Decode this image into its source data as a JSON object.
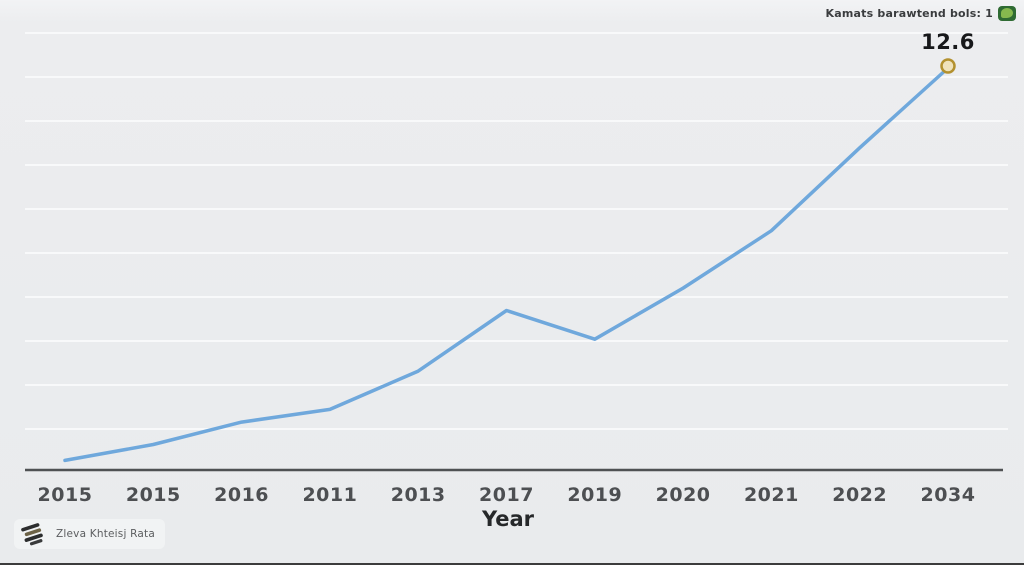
{
  "header": {
    "legend_text": "Kamats barawtend bols: 1",
    "legend_badge_icon": "green-leaf-badge"
  },
  "annotation": {
    "end_value_label": "12.6"
  },
  "axis": {
    "x_title": "Year"
  },
  "watermark": {
    "text": "Zleva Khteisj Rata",
    "icon": "stacked-bars-logo"
  },
  "colors": {
    "background": "#e9ebed",
    "gridline": "#f8f9fa",
    "axis_line": "#4f5153",
    "line": "#6fa8dc",
    "marker_stroke": "#b3912f",
    "marker_fill": "#efe2bb",
    "badge_green": "#2f6b33",
    "badge_leaf": "#86b94e"
  },
  "chart_data": {
    "type": "line",
    "title": "",
    "xlabel": "Year",
    "ylabel": "",
    "categories": [
      "2015",
      "2015",
      "2016",
      "2011",
      "2013",
      "2017",
      "2019",
      "2020",
      "2021",
      "2022",
      "2034"
    ],
    "series": [
      {
        "name": "value",
        "values": [
          0.3,
          0.8,
          1.5,
          1.9,
          3.1,
          5.0,
          4.1,
          5.7,
          7.5,
          10.1,
          12.6
        ]
      }
    ],
    "ylim": [
      0,
      12.6
    ],
    "grid": true,
    "gridlines_count": 10,
    "legend_position": "top-right",
    "end_point_label": "12.6",
    "end_point_marker": "gold-open-circle"
  }
}
